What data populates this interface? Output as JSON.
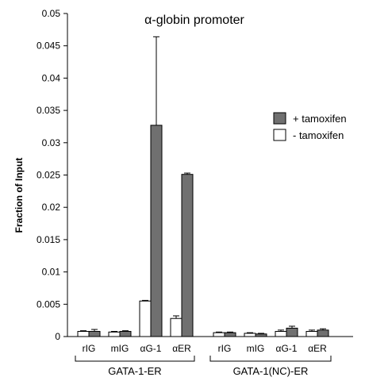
{
  "chart_data": {
    "type": "bar",
    "title": "α-globin promoter",
    "ylabel": "Fraction of Input",
    "xlabel": "",
    "ylim": [
      0,
      0.05
    ],
    "yticks": [
      "0",
      "0.005",
      "0.01",
      "0.015",
      "0.02",
      "0.025",
      "0.03",
      "0.035",
      "0.04",
      "0.045",
      "0.05"
    ],
    "ytick_values": [
      0,
      0.005,
      0.01,
      0.015,
      0.02,
      0.025,
      0.03,
      0.035,
      0.04,
      0.045,
      0.05
    ],
    "grid": false,
    "legend_position": "right",
    "categories": [
      "rIG",
      "mIG",
      "αG-1",
      "αER",
      "rIG",
      "mIG",
      "αG-1",
      "αER"
    ],
    "groups": [
      {
        "label": "GATA-1-ER",
        "categories": [
          0,
          1,
          2,
          3
        ]
      },
      {
        "label": "GATA-1(NC)-ER",
        "categories": [
          4,
          5,
          6,
          7
        ]
      }
    ],
    "series": [
      {
        "name": "- tamoxifen",
        "color": "#ffffff",
        "values": [
          0.0008,
          0.0007,
          0.0055,
          0.0028,
          0.0006,
          0.0005,
          0.0008,
          0.0008
        ],
        "errors": [
          0.0001,
          0.0001,
          0.0001,
          0.0004,
          0.0001,
          0.0001,
          0.0002,
          0.0002
        ]
      },
      {
        "name": "+ tamoxifen",
        "color": "#707070",
        "values": [
          0.0008,
          0.0008,
          0.0327,
          0.0251,
          0.0006,
          0.0004,
          0.0013,
          0.001
        ],
        "errors": [
          0.0003,
          0.0001,
          0.0137,
          0.0002,
          0.0001,
          0.0001,
          0.0003,
          0.0002
        ]
      }
    ]
  }
}
